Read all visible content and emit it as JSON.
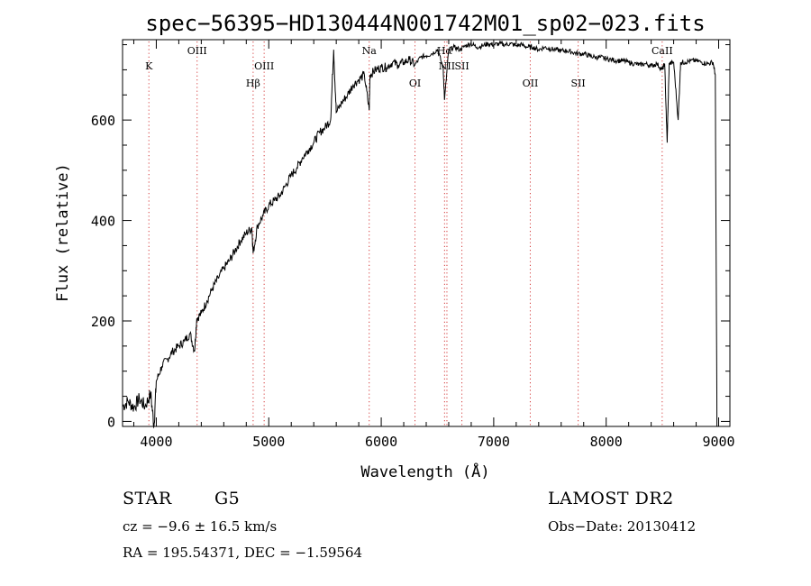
{
  "chart_data": {
    "type": "line",
    "title": "spec−56395−HD130444N001742M01_sp02−023.fits",
    "xlabel": "Wavelength (Å)",
    "ylabel": "Flux (relative)",
    "xlim": [
      3700,
      9100
    ],
    "ylim": [
      -10,
      760
    ],
    "x_ticks": [
      4000,
      5000,
      6000,
      7000,
      8000,
      9000
    ],
    "y_ticks": [
      0,
      200,
      400,
      600
    ],
    "grid": false,
    "series": [
      {
        "x": [
          3700,
          3750,
          3800,
          3850,
          3900,
          3950,
          3980,
          4000,
          4050,
          4100,
          4150,
          4200,
          4250,
          4300,
          4340,
          4360,
          4400,
          4450,
          4500,
          4550,
          4600,
          4650,
          4700,
          4750,
          4800,
          4850,
          4861,
          4900,
          4950,
          5000,
          5050,
          5100,
          5150,
          5200,
          5250,
          5300,
          5350,
          5400,
          5450,
          5500,
          5550,
          5577,
          5600,
          5650,
          5700,
          5750,
          5800,
          5850,
          5893,
          5900,
          5950,
          6000,
          6050,
          6100,
          6150,
          6200,
          6250,
          6300,
          6350,
          6400,
          6450,
          6500,
          6550,
          6563,
          6600,
          6650,
          6700,
          6750,
          6800,
          6850,
          6900,
          6950,
          7000,
          7050,
          7100,
          7150,
          7200,
          7250,
          7300,
          7350,
          7400,
          7450,
          7500,
          7550,
          7600,
          7650,
          7700,
          7750,
          7800,
          7850,
          7900,
          7950,
          8000,
          8050,
          8100,
          8150,
          8200,
          8250,
          8300,
          8350,
          8400,
          8450,
          8498,
          8520,
          8542,
          8560,
          8600,
          8640,
          8662,
          8700,
          8750,
          8800,
          8850,
          8900,
          8950,
          8970,
          8985
        ],
        "y": [
          30,
          40,
          28,
          45,
          30,
          55,
          -10,
          80,
          110,
          125,
          140,
          150,
          160,
          175,
          140,
          205,
          215,
          240,
          265,
          285,
          305,
          320,
          340,
          360,
          375,
          385,
          335,
          390,
          410,
          430,
          440,
          450,
          470,
          490,
          505,
          525,
          540,
          555,
          575,
          585,
          600,
          740,
          615,
          635,
          650,
          670,
          680,
          690,
          620,
          690,
          700,
          705,
          705,
          715,
          710,
          715,
          720,
          710,
          725,
          728,
          732,
          740,
          705,
          640,
          740,
          745,
          740,
          748,
          752,
          745,
          748,
          752,
          750,
          752,
          750,
          752,
          748,
          750,
          745,
          745,
          740,
          745,
          742,
          740,
          738,
          738,
          735,
          732,
          732,
          728,
          725,
          725,
          722,
          720,
          718,
          718,
          715,
          712,
          710,
          712,
          708,
          712,
          700,
          712,
          555,
          712,
          715,
          600,
          715,
          715,
          718,
          718,
          715,
          712,
          715,
          690,
          -10
        ]
      }
    ],
    "line_labels": [
      {
        "label": "K",
        "x": 3934,
        "row": 1
      },
      {
        "label": "OIII",
        "x": 4363,
        "row": 0
      },
      {
        "label": "Hβ",
        "x": 4861,
        "row": 2
      },
      {
        "label": "OIII",
        "x": 4959,
        "row": 1
      },
      {
        "label": "Na",
        "x": 5893,
        "row": 0
      },
      {
        "label": "OI",
        "x": 6300,
        "row": 2
      },
      {
        "label": "Hα",
        "x": 6563,
        "row": 0
      },
      {
        "label": "NII",
        "x": 6584,
        "row": 1
      },
      {
        "label": "SII",
        "x": 6717,
        "row": 1
      },
      {
        "label": "OII",
        "x": 7325,
        "row": 2
      },
      {
        "label": "SII",
        "x": 7751,
        "row": 2
      },
      {
        "label": "CaII",
        "x": 8498,
        "row": 0
      }
    ],
    "line_marker_color": "#d43a3a"
  },
  "footer": {
    "object_class": "STAR",
    "subclass": "G5",
    "survey": "LAMOST DR2",
    "redshift": "cz = −9.6 ± 16.5 km/s",
    "obs_date": "Obs−Date: 20130412",
    "coords": "RA = 195.54371, DEC =  −1.59564"
  }
}
